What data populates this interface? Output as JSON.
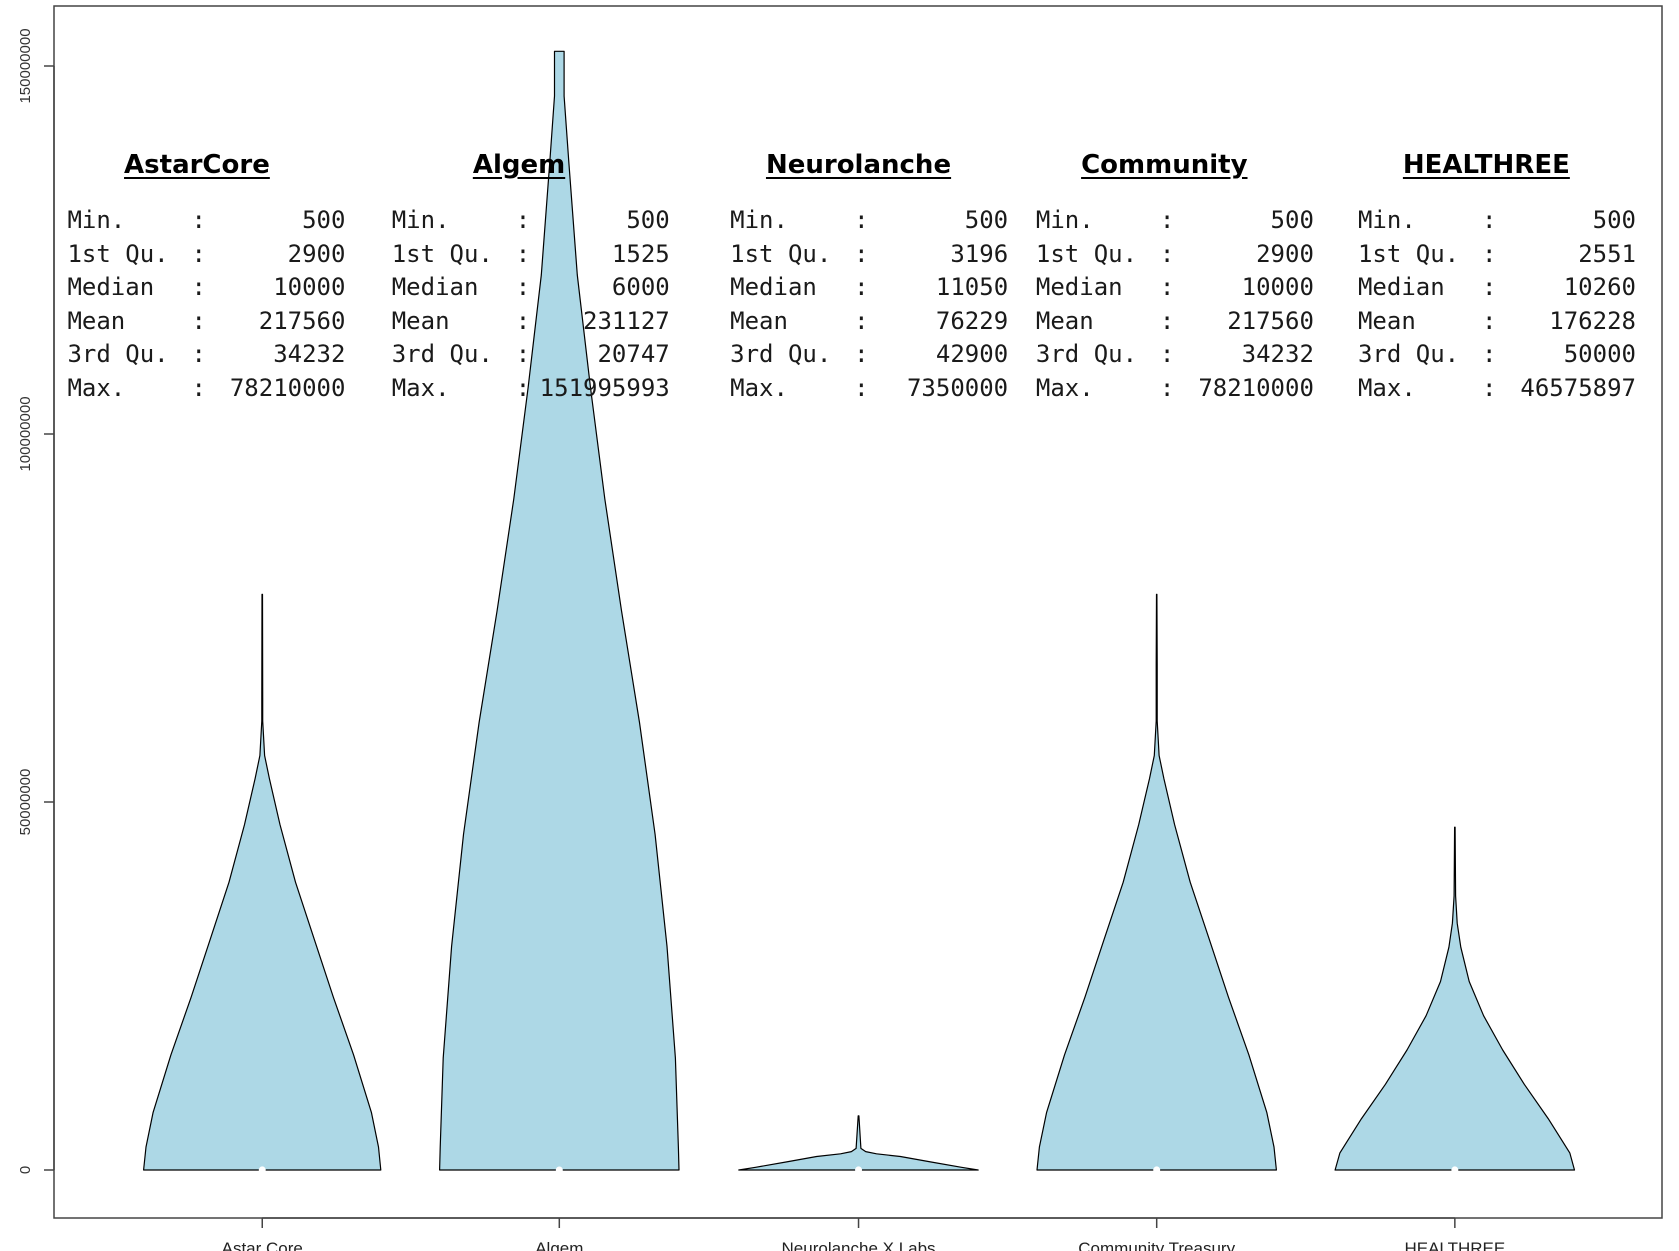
{
  "chart_data": {
    "type": "violin",
    "title": "",
    "xlabel": "",
    "ylabel": "",
    "ylim": [
      0,
      158000000
    ],
    "yticks": [
      0,
      50000000,
      100000000,
      150000000
    ],
    "ytick_labels": [
      "0",
      "50000000",
      "100000000",
      "150000000"
    ],
    "categories": [
      "Astar Core",
      "Algem",
      "Neurolanche X Labs",
      "Community Treasury",
      "HEALTHREE"
    ],
    "fill_color": "#ADD8E6",
    "outline_color": "#000000",
    "median_marker_color": "#FFFFFF",
    "series": [
      {
        "name": "Astar Core",
        "min": 500,
        "q1": 2900,
        "median": 10000,
        "mean": 217560,
        "q3": 34232,
        "max": 78210000
      },
      {
        "name": "Algem",
        "min": 500,
        "q1": 1525,
        "median": 6000,
        "mean": 231127,
        "q3": 20747,
        "max": 151995993
      },
      {
        "name": "Neurolanche X Labs",
        "min": 500,
        "q1": 3196,
        "median": 11050,
        "mean": 76229,
        "q3": 42900,
        "max": 7350000
      },
      {
        "name": "Community Treasury",
        "min": 500,
        "q1": 2900,
        "median": 10000,
        "mean": 217560,
        "q3": 34232,
        "max": 78210000
      },
      {
        "name": "HEALTHREE",
        "min": 500,
        "q1": 2551,
        "median": 10260,
        "mean": 176228,
        "q3": 50000,
        "max": 46575897
      }
    ],
    "annotations": [
      {
        "title": "AstarCore",
        "rows": [
          [
            "Min.",
            "500"
          ],
          [
            "1st Qu.",
            "2900"
          ],
          [
            "Median",
            "10000"
          ],
          [
            "Mean",
            "217560"
          ],
          [
            "3rd Qu.",
            "34232"
          ],
          [
            "Max.",
            "78210000"
          ]
        ]
      },
      {
        "title": "Algem",
        "rows": [
          [
            "Min.",
            "500"
          ],
          [
            "1st Qu.",
            "1525"
          ],
          [
            "Median",
            "6000"
          ],
          [
            "Mean",
            "231127"
          ],
          [
            "3rd Qu.",
            "20747"
          ],
          [
            "Max.",
            "151995993"
          ]
        ]
      },
      {
        "title": "Neurolanche",
        "rows": [
          [
            "Min.",
            "500"
          ],
          [
            "1st Qu.",
            "3196"
          ],
          [
            "Median",
            "11050"
          ],
          [
            "Mean",
            "76229"
          ],
          [
            "3rd Qu.",
            "42900"
          ],
          [
            "Max.",
            "7350000"
          ]
        ]
      },
      {
        "title": "Community",
        "rows": [
          [
            "Min.",
            "500"
          ],
          [
            "1st Qu.",
            "2900"
          ],
          [
            "Median",
            "10000"
          ],
          [
            "Mean",
            "217560"
          ],
          [
            "3rd Qu.",
            "34232"
          ],
          [
            "Max.",
            "78210000"
          ]
        ]
      },
      {
        "title": "HEALTHREE",
        "rows": [
          [
            "Min.",
            "500"
          ],
          [
            "1st Qu.",
            "2551"
          ],
          [
            "Median",
            "10260"
          ],
          [
            "Mean",
            "176228"
          ],
          [
            "3rd Qu.",
            "50000"
          ],
          [
            "Max.",
            "46575897"
          ]
        ]
      }
    ],
    "grid": false,
    "legend": "none"
  }
}
